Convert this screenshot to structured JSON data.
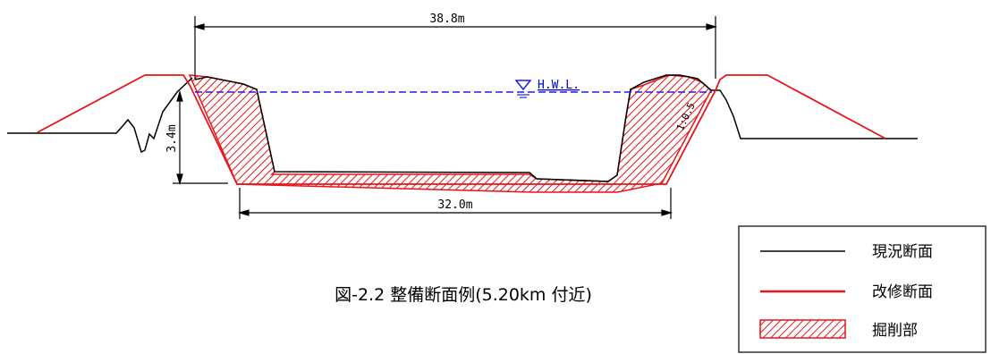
{
  "dimensions": {
    "top_width": "38.8m",
    "bottom_width": "32.0m",
    "height": "3.4m",
    "slope": "1:0.5"
  },
  "water_level": {
    "label": "H.W.L."
  },
  "caption": "図-2.2 整備断面例(5.20km 付近)",
  "legend": {
    "items": [
      {
        "label": "現況断面"
      },
      {
        "label": "改修断面"
      },
      {
        "label": "掘削部"
      }
    ]
  },
  "colors": {
    "existing": "#000000",
    "improved": "#e8141a",
    "hwl": "#1e1ee6",
    "hatch": "#e8141a"
  }
}
